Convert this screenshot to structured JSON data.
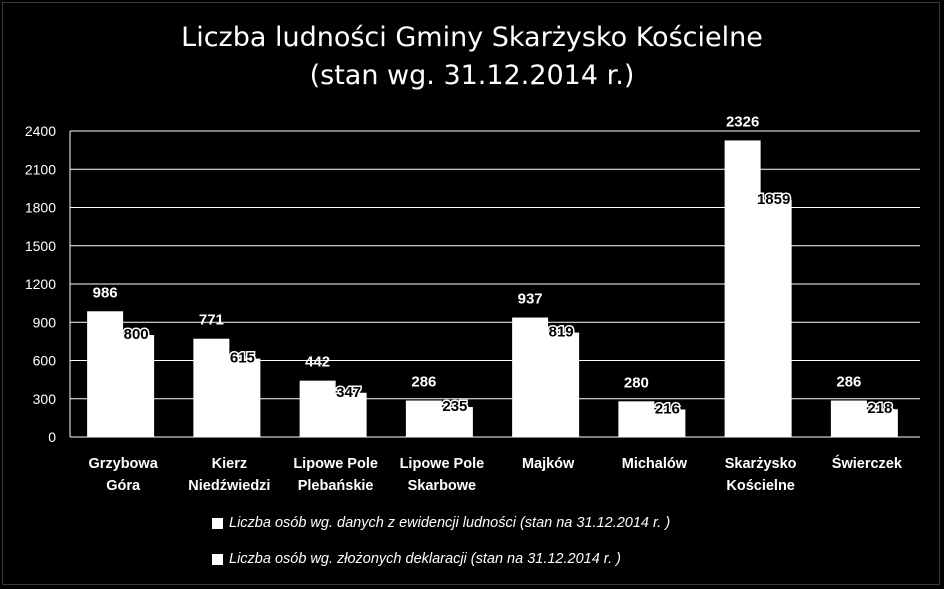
{
  "chart_data": {
    "type": "bar",
    "title": "Liczba ludności Gminy Skarżysko Kościelne",
    "subtitle": "(stan wg. 31.12.2014 r.)",
    "categories": [
      [
        "Grzybowa",
        "Góra"
      ],
      [
        "Kierz",
        "Niedźwiedzi"
      ],
      [
        "Lipowe Pole",
        "Plebańskie"
      ],
      [
        "Lipowe Pole",
        "Skarbowe"
      ],
      [
        "Majków"
      ],
      [
        "Michalów"
      ],
      [
        "Skarżysko",
        "Kościelne"
      ],
      [
        "Świerczek"
      ]
    ],
    "series": [
      {
        "name": "Liczba osób wg. danych z ewidencji ludności (stan na 31.12.2014 r. )",
        "values": [
          986,
          771,
          442,
          286,
          937,
          280,
          2326,
          286
        ]
      },
      {
        "name": "Liczba osób wg. złożonych deklaracji (stan na 31.12.2014 r. )",
        "values": [
          800,
          615,
          347,
          235,
          819,
          216,
          1859,
          218
        ]
      }
    ],
    "ylim": [
      0,
      2400
    ],
    "yticks": [
      "0",
      "300",
      "600",
      "900",
      "1200",
      "1500",
      "1800",
      "2100",
      "2400"
    ],
    "grid": true,
    "legend_position": "bottom",
    "colors": {
      "background": "#000000",
      "bar": "#ffffff",
      "grid": "#ffffff",
      "text": "#ffffff"
    }
  }
}
